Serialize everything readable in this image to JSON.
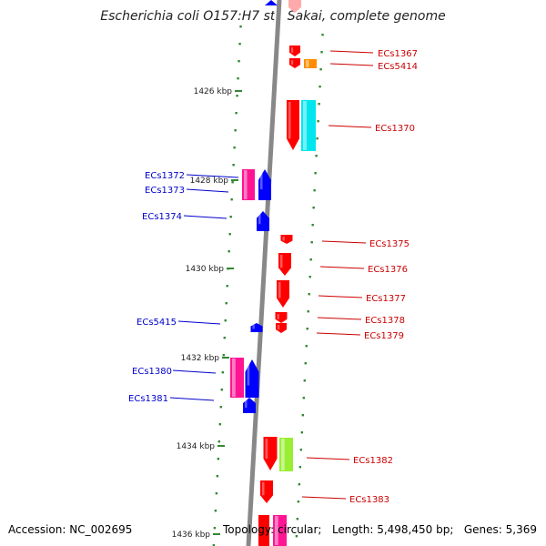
{
  "title": "Escherichia coli O157:H7 str. Sakai, complete genome",
  "footer": {
    "accession": "Accession: NC_002695",
    "topology": "Topology: circular;",
    "length": "Length: 5,498,450 bp;",
    "genes": "Genes: 5,369"
  },
  "colors": {
    "backbone": "#888888",
    "forward_gene": "#ff0000",
    "reverse_gene": "#0000ff",
    "forward_label": "#cc0000",
    "reverse_label": "#0000cc",
    "tick": "#338833",
    "cds_magenta": "#ff1493",
    "cds_cyan": "#00e5ee",
    "cds_orange": "#ff8c00",
    "cds_green": "#99ee33"
  },
  "ticks": [
    {
      "label": "1426 kbp"
    },
    {
      "label": "1428 kbp"
    },
    {
      "label": "1430 kbp"
    },
    {
      "label": "1432 kbp"
    },
    {
      "label": "1434 kbp"
    },
    {
      "label": "1436 kbp"
    }
  ],
  "forward_genes": [
    {
      "label": "ECs1367"
    },
    {
      "label": "ECs5414"
    },
    {
      "label": "ECs1370"
    },
    {
      "label": "ECs1375"
    },
    {
      "label": "ECs1376"
    },
    {
      "label": "ECs1377"
    },
    {
      "label": "ECs1378"
    },
    {
      "label": "ECs1379"
    },
    {
      "label": "ECs1382"
    },
    {
      "label": "ECs1383"
    }
  ],
  "reverse_genes": [
    {
      "label": "ECs1372"
    },
    {
      "label": "ECs1373"
    },
    {
      "label": "ECs1374"
    },
    {
      "label": "ECs5415"
    },
    {
      "label": "ECs1380"
    },
    {
      "label": "ECs1381"
    }
  ]
}
